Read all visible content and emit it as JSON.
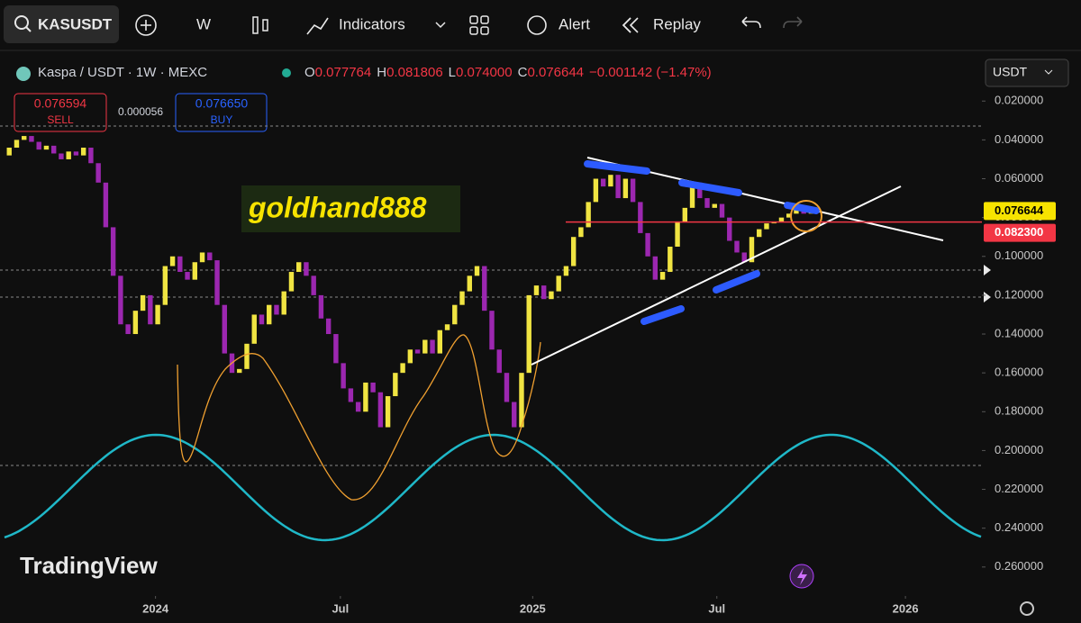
{
  "toolbar": {
    "symbol": "KASUSDT",
    "interval": "W",
    "indicators": "Indicators",
    "alert": "Alert",
    "replay": "Replay"
  },
  "legend": {
    "title": "Kaspa / USDT · 1W · MEXC",
    "currency": "USDT",
    "ohlc": [
      {
        "key": "O",
        "value": "0.077764"
      },
      {
        "key": "H",
        "value": "0.081806"
      },
      {
        "key": "L",
        "value": "0.074000"
      },
      {
        "key": "C",
        "value": "0.076644"
      }
    ],
    "change": "−0.001142 (−1.47%)",
    "sell_price": "0.076594",
    "sell": "SELL",
    "spread": "0.000056",
    "buy_price": "0.076650",
    "buy": "BUY"
  },
  "watermark": "goldhand888",
  "logo": "TradingView",
  "chart_data": {
    "type": "candlestick",
    "y_inverted": true,
    "xlim": [
      -1,
      131
    ],
    "ylim": [
      0.012,
      0.274
    ],
    "xticks": [
      {
        "value": 19.7,
        "label": "2024"
      },
      {
        "value": 44.6,
        "label": "Jul"
      },
      {
        "value": 70.5,
        "label": "2025"
      },
      {
        "value": 95.3,
        "label": "Jul"
      },
      {
        "value": 120.7,
        "label": "2026"
      }
    ],
    "yticks": [
      {
        "value": 0.02,
        "label": "0.020000"
      },
      {
        "value": 0.04,
        "label": "0.040000"
      },
      {
        "value": 0.06,
        "label": "0.060000"
      },
      {
        "value": 0.08,
        "label": "0.080000"
      },
      {
        "value": 0.1,
        "label": "0.100000"
      },
      {
        "value": 0.12,
        "label": "0.120000"
      },
      {
        "value": 0.14,
        "label": "0.140000"
      },
      {
        "value": 0.16,
        "label": "0.160000"
      },
      {
        "value": 0.18,
        "label": "0.180000"
      },
      {
        "value": 0.2,
        "label": "0.200000"
      },
      {
        "value": 0.22,
        "label": "0.220000"
      },
      {
        "value": 0.24,
        "label": "0.240000"
      },
      {
        "value": 0.26,
        "label": "0.260000"
      }
    ],
    "increase_color": "#9c27b0",
    "decrease_color": "#f0e442",
    "price_tags": [
      {
        "value": 0.076644,
        "label": "0.076644",
        "color": "#f7e300"
      },
      {
        "value": 0.0823,
        "label": "0.082300",
        "color": "#f23645"
      }
    ],
    "open": [
      0.048,
      0.044,
      0.04,
      0.038,
      0.041,
      0.045,
      0.043,
      0.047,
      0.05,
      0.046,
      0.048,
      0.044,
      0.052,
      0.062,
      0.085,
      0.11,
      0.135,
      0.14,
      0.128,
      0.12,
      0.135,
      0.125,
      0.105,
      0.1,
      0.108,
      0.112,
      0.103,
      0.098,
      0.102,
      0.125,
      0.15,
      0.16,
      0.158,
      0.145,
      0.13,
      0.135,
      0.125,
      0.13,
      0.118,
      0.108,
      0.103,
      0.11,
      0.12,
      0.132,
      0.14,
      0.155,
      0.168,
      0.175,
      0.18,
      0.165,
      0.17,
      0.188,
      0.172,
      0.16,
      0.155,
      0.148,
      0.15,
      0.143,
      0.15,
      0.138,
      0.135,
      0.125,
      0.118,
      0.11,
      0.105,
      0.128,
      0.148,
      0.16,
      0.175,
      0.188,
      0.16,
      0.12,
      0.115,
      0.122,
      0.118,
      0.11,
      0.105,
      0.09,
      0.085,
      0.072,
      0.06,
      0.064,
      0.058,
      0.07,
      0.06,
      0.072,
      0.088,
      0.1,
      0.112,
      0.108,
      0.095,
      0.082,
      0.075,
      0.062,
      0.07,
      0.075,
      0.073,
      0.08,
      0.092,
      0.098,
      0.103,
      0.09,
      0.086,
      0.083,
      0.082,
      0.08,
      0.078,
      0.076,
      0.078
    ],
    "close": [
      0.044,
      0.04,
      0.038,
      0.041,
      0.045,
      0.043,
      0.047,
      0.05,
      0.046,
      0.048,
      0.044,
      0.052,
      0.062,
      0.085,
      0.11,
      0.135,
      0.14,
      0.128,
      0.12,
      0.135,
      0.125,
      0.105,
      0.1,
      0.108,
      0.112,
      0.103,
      0.098,
      0.102,
      0.125,
      0.15,
      0.16,
      0.158,
      0.145,
      0.13,
      0.135,
      0.125,
      0.13,
      0.118,
      0.108,
      0.103,
      0.11,
      0.12,
      0.132,
      0.14,
      0.155,
      0.168,
      0.175,
      0.18,
      0.165,
      0.17,
      0.188,
      0.172,
      0.16,
      0.155,
      0.148,
      0.15,
      0.143,
      0.15,
      0.138,
      0.135,
      0.125,
      0.118,
      0.11,
      0.105,
      0.128,
      0.148,
      0.16,
      0.175,
      0.188,
      0.16,
      0.12,
      0.115,
      0.122,
      0.118,
      0.11,
      0.105,
      0.09,
      0.085,
      0.072,
      0.06,
      0.064,
      0.058,
      0.07,
      0.06,
      0.072,
      0.088,
      0.1,
      0.112,
      0.108,
      0.095,
      0.082,
      0.075,
      0.062,
      0.07,
      0.075,
      0.073,
      0.08,
      0.092,
      0.098,
      0.103,
      0.09,
      0.086,
      0.083,
      0.082,
      0.08,
      0.078,
      0.076,
      0.078,
      0.077
    ]
  }
}
